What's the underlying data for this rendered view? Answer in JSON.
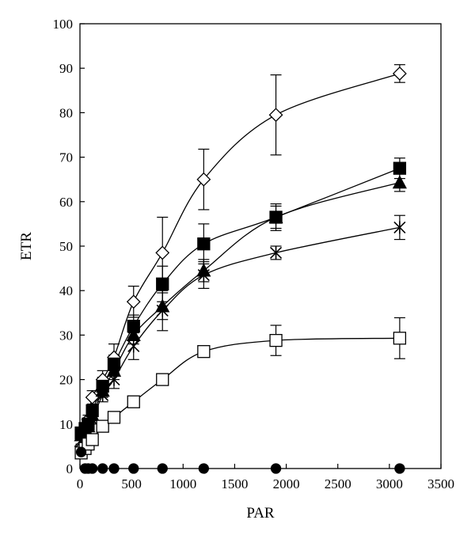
{
  "chart_data": {
    "type": "scatter",
    "title": "",
    "xlabel": "PAR",
    "ylabel": "ETR",
    "xlim": [
      0,
      3500
    ],
    "ylim": [
      0,
      100
    ],
    "xticks": [
      0,
      500,
      1000,
      1500,
      2000,
      2500,
      3000,
      3500
    ],
    "yticks": [
      0,
      10,
      20,
      30,
      40,
      50,
      60,
      70,
      80,
      90,
      100
    ],
    "grid": false,
    "legend": "none",
    "x": [
      12,
      50,
      80,
      120,
      220,
      330,
      520,
      800,
      1200,
      1900,
      3100
    ],
    "series": [
      {
        "marker": "diamond-open",
        "values": [
          5,
          9,
          11,
          16,
          20,
          25,
          37.5,
          48.5,
          65,
          79.5,
          88.8
        ],
        "errors": [
          0.5,
          1.0,
          1.0,
          1.5,
          2.0,
          3.0,
          3.5,
          8.0,
          6.8,
          9.0,
          2.0
        ]
      },
      {
        "marker": "square-filled",
        "values": [
          8,
          9,
          10,
          13,
          18.5,
          23.5,
          32,
          41.5,
          50.5,
          56.5,
          67.5
        ],
        "errors": [
          0.5,
          0.5,
          1.0,
          1.0,
          2.0,
          2.0,
          2.5,
          4.0,
          4.5,
          3.0,
          2.3
        ]
      },
      {
        "marker": "triangle-filled",
        "values": [
          7.5,
          8.5,
          9.5,
          12,
          17.5,
          22,
          30,
          36.5,
          44.5,
          56.5,
          64.3
        ],
        "errors": [
          0.5,
          0.5,
          1.0,
          1.0,
          1.5,
          2.0,
          2.0,
          3.0,
          2.5,
          2.5,
          2.0
        ]
      },
      {
        "marker": "star",
        "values": [
          6,
          7,
          8,
          11,
          16.5,
          20,
          27.5,
          35.5,
          43.5,
          48.5,
          54.2
        ],
        "errors": [
          0.5,
          0.5,
          1.0,
          1.0,
          1.5,
          2.0,
          3.0,
          4.5,
          3.0,
          1.5,
          2.7
        ]
      },
      {
        "marker": "square-open",
        "values": [
          3.5,
          4.5,
          5.5,
          6.5,
          9.5,
          11.5,
          15,
          20,
          26.3,
          28.8,
          29.3
        ],
        "errors": [
          0.3,
          0.3,
          0.5,
          0.5,
          1.0,
          1.0,
          1.0,
          1.0,
          1.0,
          3.4,
          4.6
        ]
      },
      {
        "marker": "circle-filled",
        "values": [
          3.7,
          0,
          0,
          0,
          0,
          0,
          0,
          0,
          0,
          0,
          0
        ],
        "errors": [
          0,
          0,
          0,
          0,
          0,
          0,
          0,
          0,
          0,
          0,
          0
        ]
      }
    ]
  }
}
